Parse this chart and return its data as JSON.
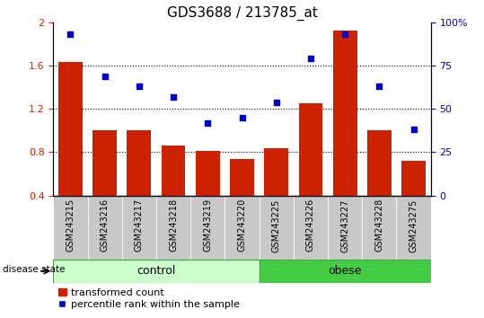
{
  "title": "GDS3688 / 213785_at",
  "samples": [
    "GSM243215",
    "GSM243216",
    "GSM243217",
    "GSM243218",
    "GSM243219",
    "GSM243220",
    "GSM243225",
    "GSM243226",
    "GSM243227",
    "GSM243228",
    "GSM243275"
  ],
  "bar_values": [
    1.63,
    1.0,
    1.0,
    0.86,
    0.81,
    0.74,
    0.84,
    1.25,
    1.92,
    1.0,
    0.72
  ],
  "scatter_pct": [
    93,
    69,
    63,
    57,
    42,
    45,
    54,
    79,
    93,
    63,
    38
  ],
  "ylim_left": [
    0.4,
    2.0
  ],
  "ylim_right": [
    0,
    100
  ],
  "yticks_left": [
    0.4,
    0.8,
    1.2,
    1.6,
    2.0
  ],
  "ytick_labels_left": [
    "0.4",
    "0.8",
    "1.2",
    "1.6",
    "2"
  ],
  "yticks_right_vals": [
    0,
    25,
    50,
    75,
    100
  ],
  "ytick_labels_right": [
    "0",
    "25",
    "50",
    "75",
    "100%"
  ],
  "bar_color": "#cc2200",
  "scatter_color": "#0000cc",
  "control_label": "control",
  "obese_label": "obese",
  "n_control": 6,
  "n_obese": 5,
  "disease_state_label": "disease state",
  "legend_bar_label": "transformed count",
  "legend_scatter_label": "percentile rank within the sample",
  "control_color": "#ccffcc",
  "obese_color": "#44cc44",
  "tick_bg_color": "#c8c8c8",
  "bar_width": 0.7,
  "grid_dotted_vals": [
    0.8,
    1.2,
    1.6
  ]
}
